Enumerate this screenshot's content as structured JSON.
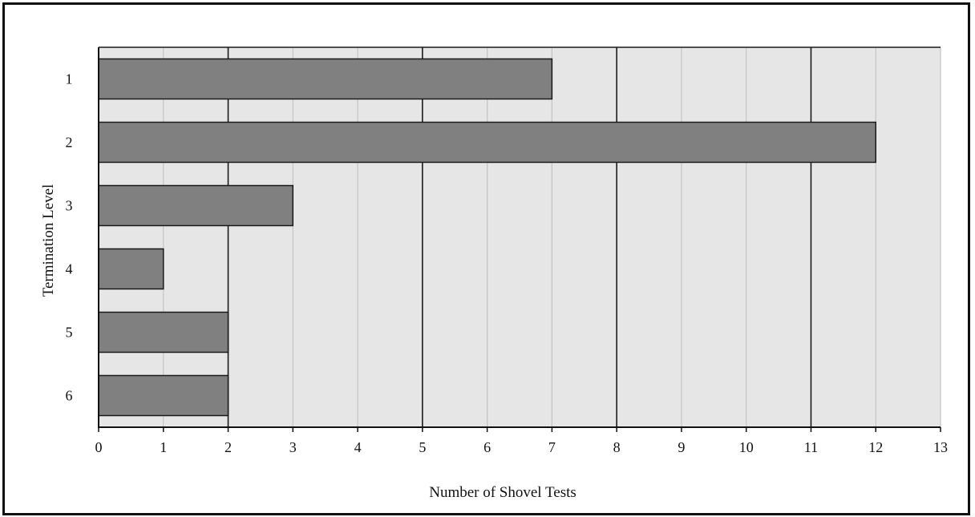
{
  "chart_data": {
    "type": "bar",
    "orientation": "horizontal",
    "title": "",
    "xlabel": "Number of Shovel Tests",
    "ylabel": "Termination Level",
    "categories": [
      "1",
      "2",
      "3",
      "4",
      "5",
      "6"
    ],
    "values": [
      7,
      12,
      3,
      1,
      2,
      2
    ],
    "xlim": [
      0,
      13
    ],
    "xticks": [
      "0",
      "1",
      "2",
      "3",
      "4",
      "5",
      "6",
      "7",
      "8",
      "9",
      "10",
      "11",
      "12",
      "13"
    ],
    "grid": true,
    "legend": "none",
    "colors": {
      "bar_fill": "#808080",
      "bar_stroke": "#1a1a1a",
      "plot_background": "#e6e6e6",
      "minor_grid": "#c4c4c4",
      "major_grid": "#1a1a1a"
    }
  }
}
